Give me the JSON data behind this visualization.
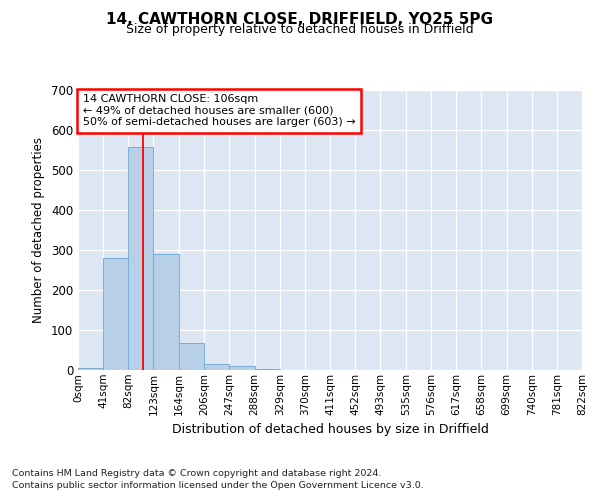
{
  "title_line1": "14, CAWTHORN CLOSE, DRIFFIELD, YO25 5PG",
  "title_line2": "Size of property relative to detached houses in Driffield",
  "xlabel": "Distribution of detached houses by size in Driffield",
  "ylabel": "Number of detached properties",
  "footer_line1": "Contains HM Land Registry data © Crown copyright and database right 2024.",
  "footer_line2": "Contains public sector information licensed under the Open Government Licence v3.0.",
  "bin_edges": [
    0,
    41,
    82,
    123,
    164,
    206,
    247,
    288,
    329,
    370,
    411,
    452,
    493,
    535,
    576,
    617,
    658,
    699,
    740,
    781,
    822
  ],
  "bin_counts": [
    5,
    280,
    557,
    290,
    68,
    15,
    10,
    3,
    0,
    0,
    0,
    0,
    0,
    0,
    0,
    0,
    0,
    0,
    0,
    0
  ],
  "bar_color": "#b8cfe8",
  "bar_edge_color": "#7aadd4",
  "background_color": "#dce7f3",
  "red_line_x": 106,
  "annotation_text_line1": "14 CAWTHORN CLOSE: 106sqm",
  "annotation_text_line2": "← 49% of detached houses are smaller (600)",
  "annotation_text_line3": "50% of semi-detached houses are larger (603) →",
  "ylim": [
    0,
    700
  ],
  "yticks": [
    0,
    100,
    200,
    300,
    400,
    500,
    600,
    700
  ],
  "x_tick_labels": [
    "0sqm",
    "41sqm",
    "82sqm",
    "123sqm",
    "164sqm",
    "206sqm",
    "247sqm",
    "288sqm",
    "329sqm",
    "370sqm",
    "411sqm",
    "452sqm",
    "493sqm",
    "535sqm",
    "576sqm",
    "617sqm",
    "658sqm",
    "699sqm",
    "740sqm",
    "781sqm",
    "822sqm"
  ]
}
